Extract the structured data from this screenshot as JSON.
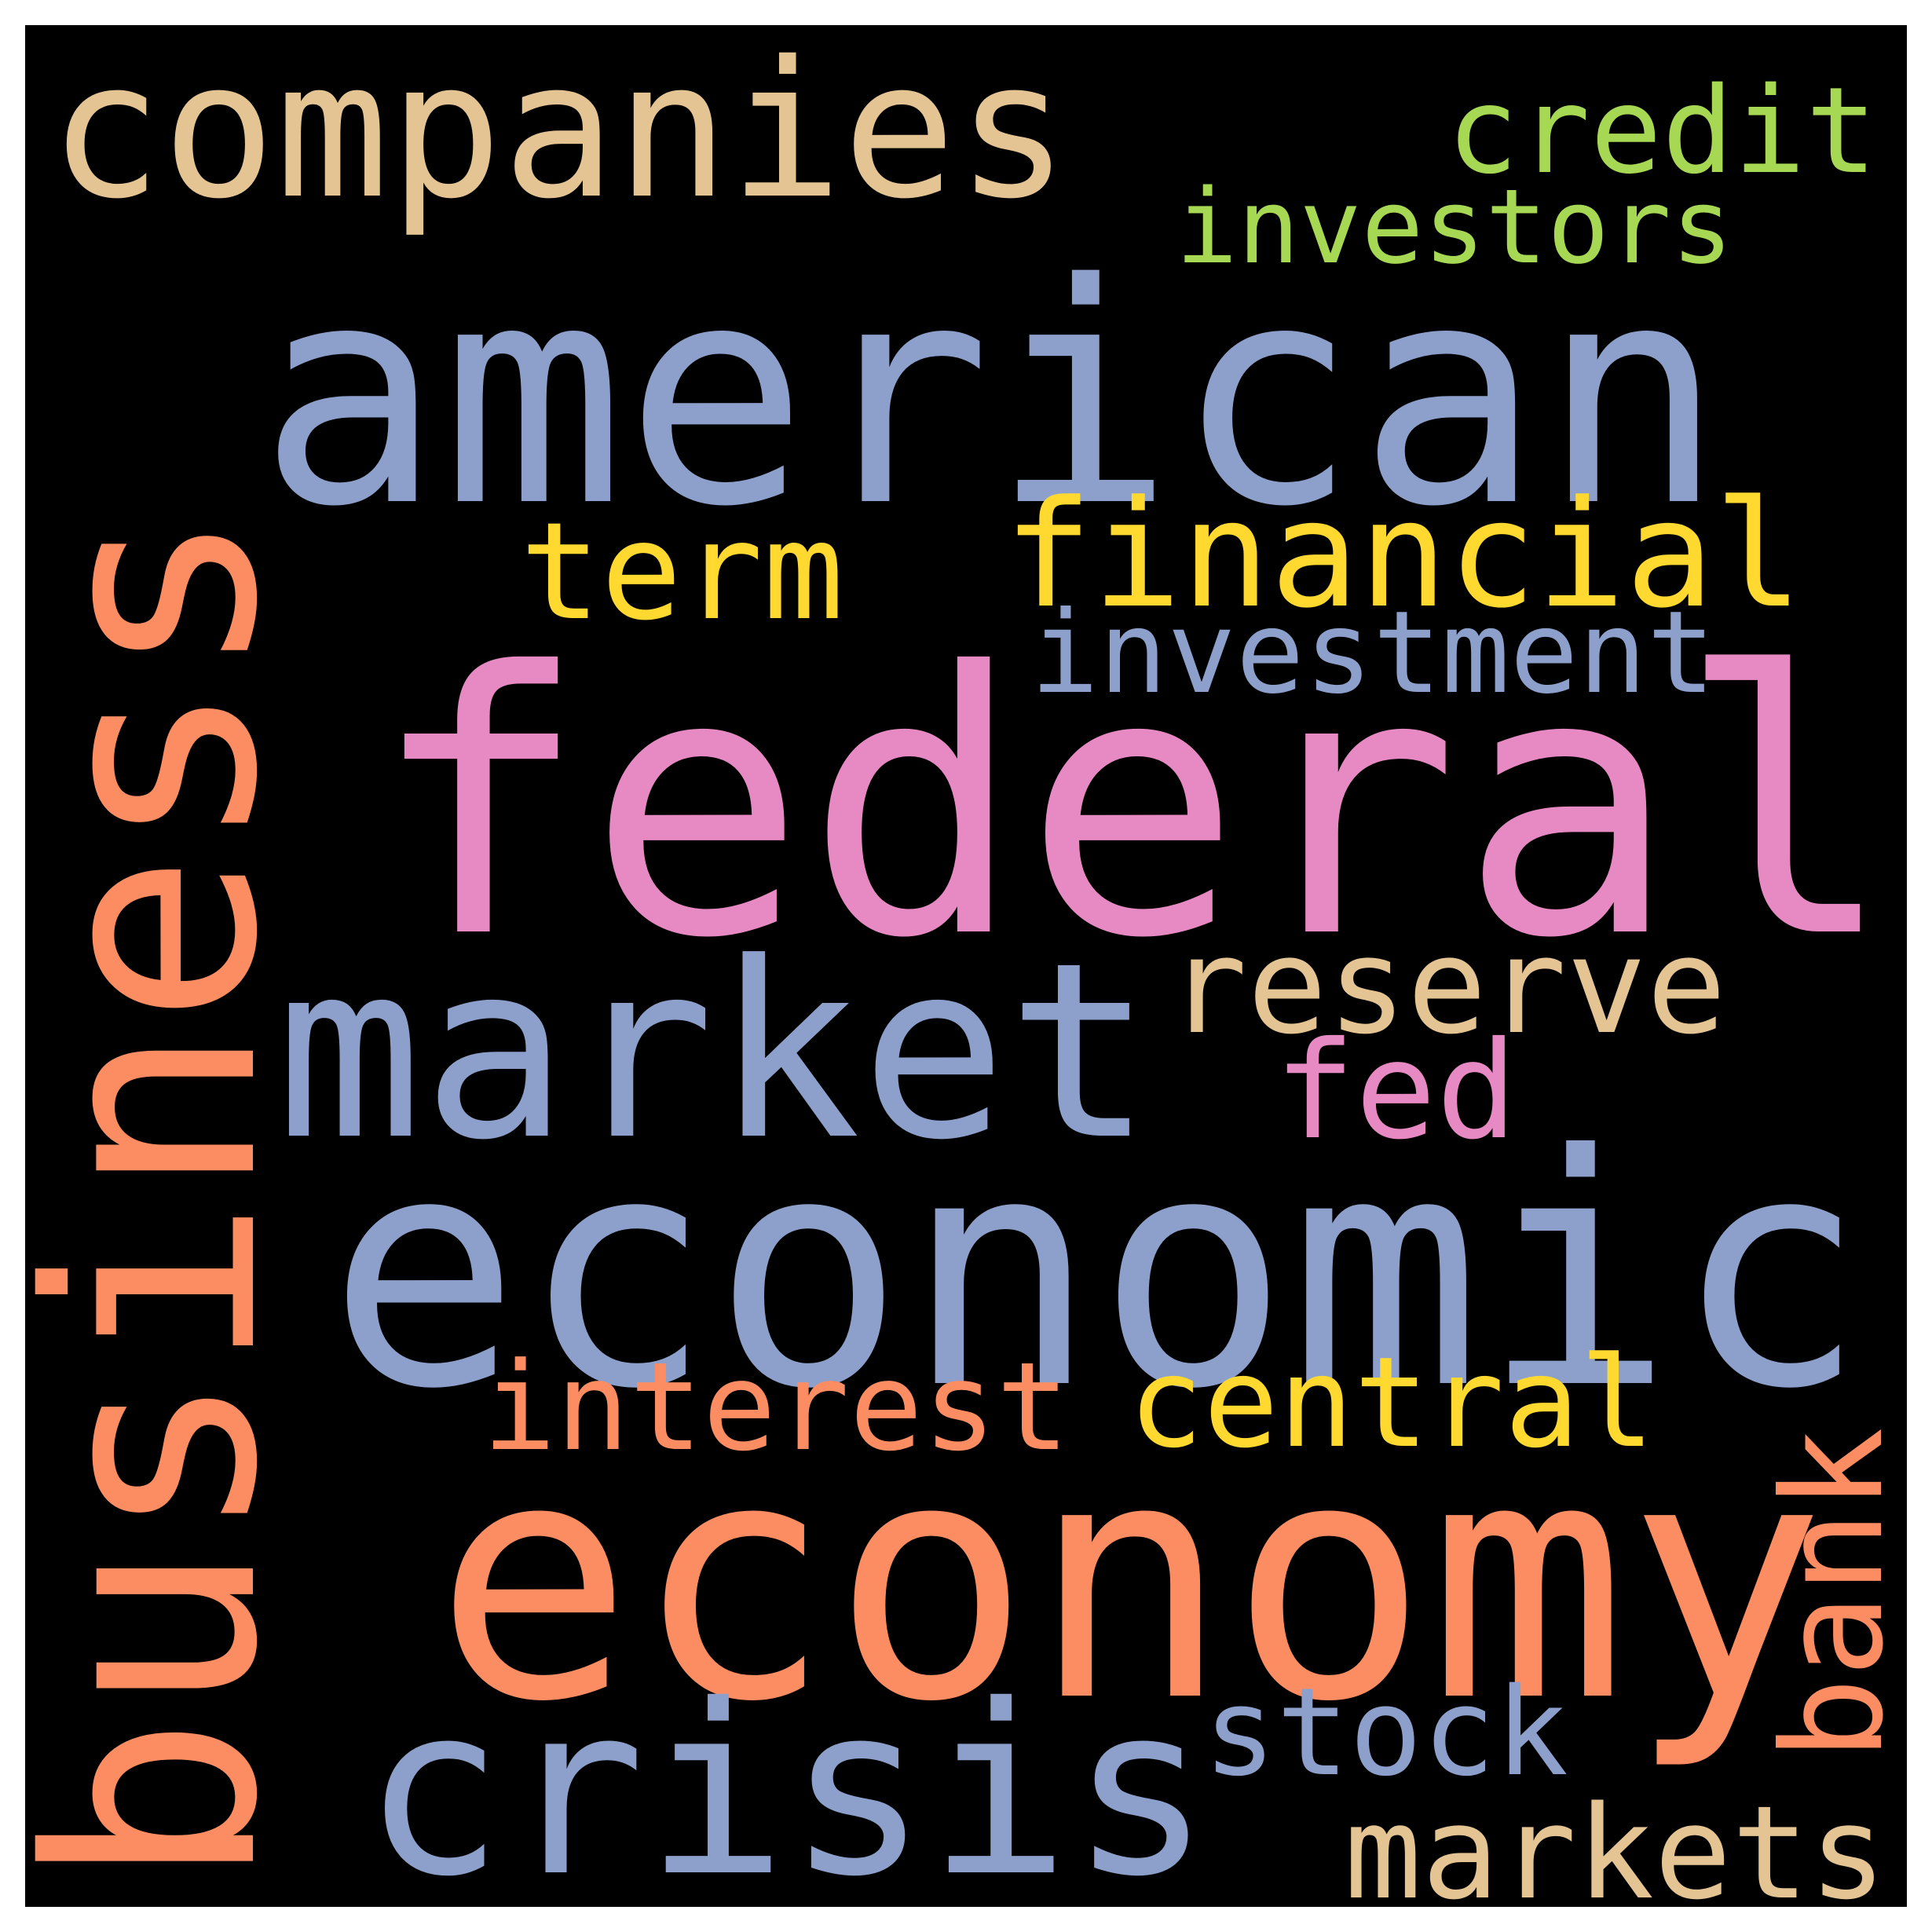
{
  "word_cloud": {
    "background": "#000000",
    "words": [
      {
        "text": "american",
        "color": "#8da0cb",
        "orientation": "horizontal"
      },
      {
        "text": "federal",
        "color": "#e78ac3",
        "orientation": "horizontal"
      },
      {
        "text": "economic",
        "color": "#8da0cb",
        "orientation": "horizontal"
      },
      {
        "text": "economy",
        "color": "#fc8d62",
        "orientation": "horizontal"
      },
      {
        "text": "business",
        "color": "#fc8d62",
        "orientation": "vertical"
      },
      {
        "text": "companies",
        "color": "#e5c494",
        "orientation": "horizontal"
      },
      {
        "text": "market",
        "color": "#8da0cb",
        "orientation": "horizontal"
      },
      {
        "text": "crisis",
        "color": "#8da0cb",
        "orientation": "horizontal"
      },
      {
        "text": "financial",
        "color": "#ffd92f",
        "orientation": "horizontal"
      },
      {
        "text": "term",
        "color": "#ffd92f",
        "orientation": "horizontal"
      },
      {
        "text": "credit",
        "color": "#a6d854",
        "orientation": "horizontal"
      },
      {
        "text": "investors",
        "color": "#a6d854",
        "orientation": "horizontal"
      },
      {
        "text": "investment",
        "color": "#8da0cb",
        "orientation": "horizontal"
      },
      {
        "text": "reserve",
        "color": "#e5c494",
        "orientation": "horizontal"
      },
      {
        "text": "fed",
        "color": "#e78ac3",
        "orientation": "horizontal"
      },
      {
        "text": "interest",
        "color": "#fc8d62",
        "orientation": "horizontal"
      },
      {
        "text": "central",
        "color": "#ffd92f",
        "orientation": "horizontal"
      },
      {
        "text": "bank",
        "color": "#fc8d62",
        "orientation": "vertical"
      },
      {
        "text": "stock",
        "color": "#8da0cb",
        "orientation": "horizontal"
      },
      {
        "text": "markets",
        "color": "#e5c494",
        "orientation": "horizontal"
      }
    ]
  }
}
